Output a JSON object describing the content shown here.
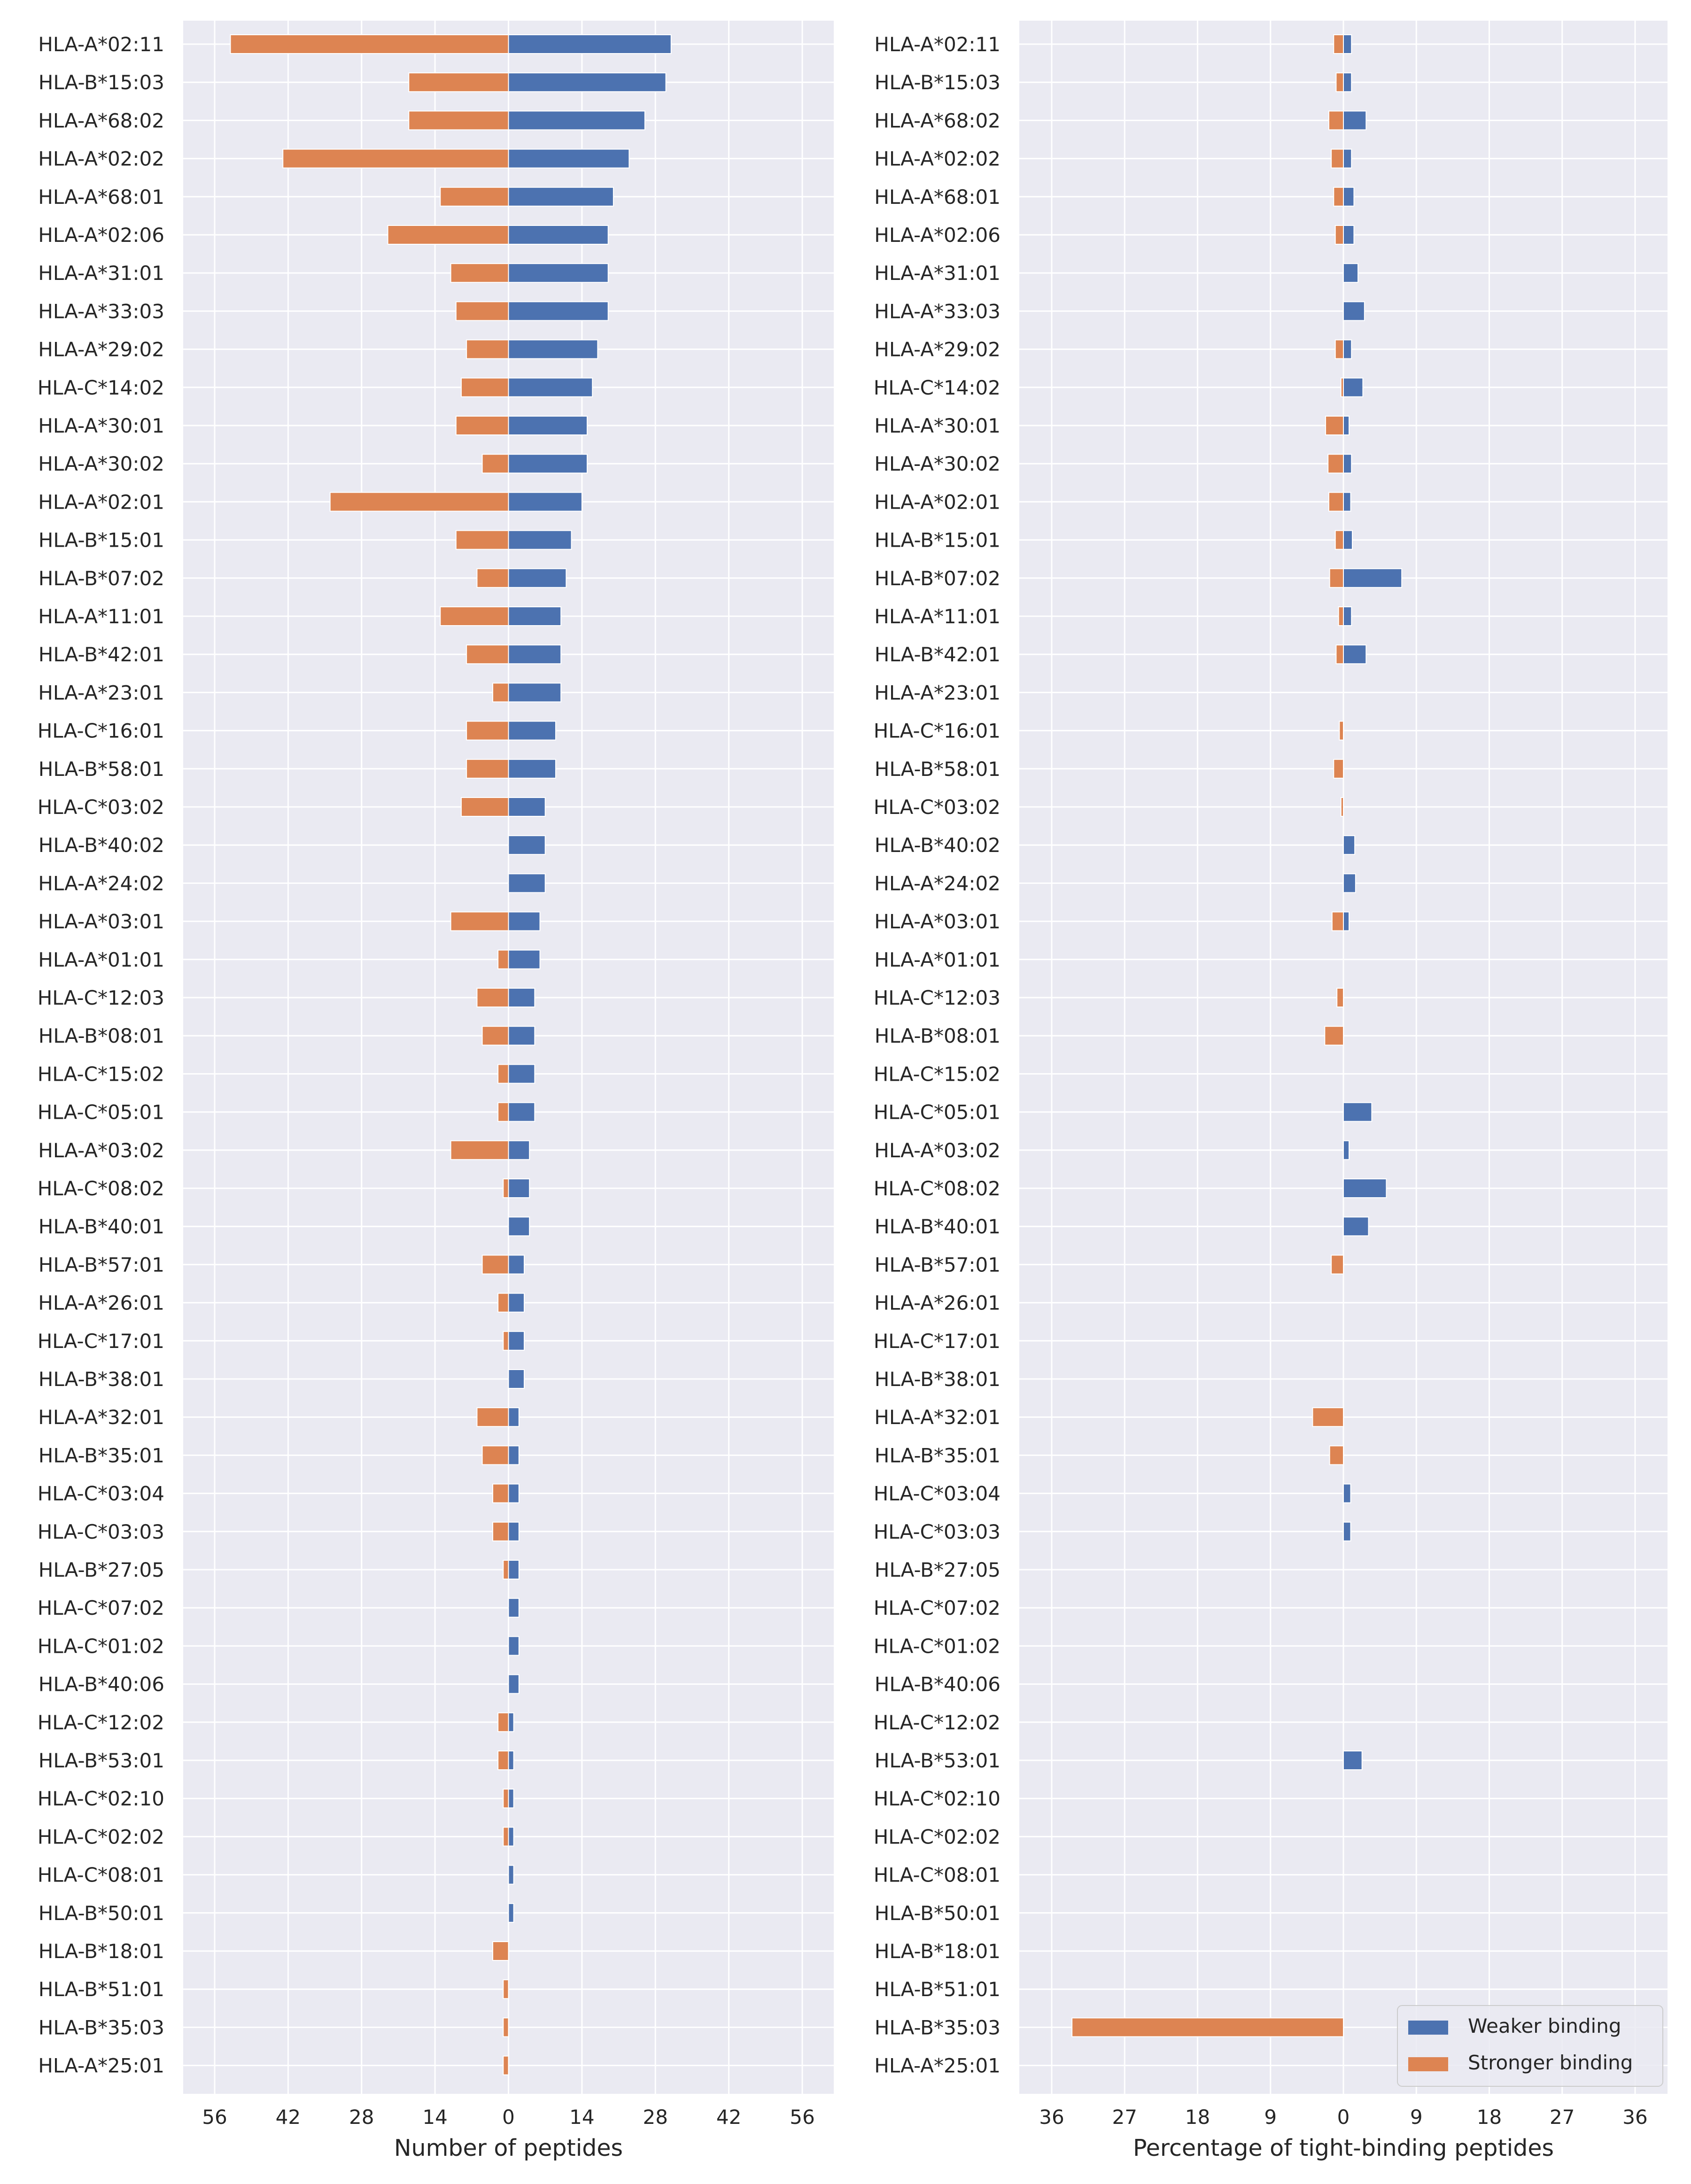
{
  "colors": {
    "weaker": "#4C72B0",
    "stronger": "#DD8452",
    "plot_bg": "#EAEAF2",
    "grid": "#FFFFFF",
    "text": "#262626"
  },
  "chart_data": [
    {
      "type": "bar",
      "orientation": "horizontal",
      "xlabel": "Number of peptides",
      "xlim": [
        -62,
        62
      ],
      "xticks": [
        -56,
        -42,
        -28,
        -14,
        0,
        14,
        28,
        42,
        56
      ],
      "xtick_labels": [
        "56",
        "42",
        "28",
        "14",
        "0",
        "14",
        "28",
        "42",
        "56"
      ],
      "grid": true,
      "categories": [
        "HLA-A*02:11",
        "HLA-B*15:03",
        "HLA-A*68:02",
        "HLA-A*02:02",
        "HLA-A*68:01",
        "HLA-A*02:06",
        "HLA-A*31:01",
        "HLA-A*33:03",
        "HLA-A*29:02",
        "HLA-C*14:02",
        "HLA-A*30:01",
        "HLA-A*30:02",
        "HLA-A*02:01",
        "HLA-B*15:01",
        "HLA-B*07:02",
        "HLA-A*11:01",
        "HLA-B*42:01",
        "HLA-A*23:01",
        "HLA-C*16:01",
        "HLA-B*58:01",
        "HLA-C*03:02",
        "HLA-B*40:02",
        "HLA-A*24:02",
        "HLA-A*03:01",
        "HLA-A*01:01",
        "HLA-C*12:03",
        "HLA-B*08:01",
        "HLA-C*15:02",
        "HLA-C*05:01",
        "HLA-A*03:02",
        "HLA-C*08:02",
        "HLA-B*40:01",
        "HLA-B*57:01",
        "HLA-A*26:01",
        "HLA-C*17:01",
        "HLA-B*38:01",
        "HLA-A*32:01",
        "HLA-B*35:01",
        "HLA-C*03:04",
        "HLA-C*03:03",
        "HLA-B*27:05",
        "HLA-C*07:02",
        "HLA-C*01:02",
        "HLA-B*40:06",
        "HLA-C*12:02",
        "HLA-B*53:01",
        "HLA-C*02:10",
        "HLA-C*02:02",
        "HLA-C*08:01",
        "HLA-B*50:01",
        "HLA-B*18:01",
        "HLA-B*51:01",
        "HLA-B*35:03",
        "HLA-A*25:01"
      ],
      "series": [
        {
          "name": "Weaker binding",
          "direction": "right",
          "values": [
            31,
            30,
            26,
            23,
            20,
            19,
            19,
            19,
            17,
            16,
            15,
            15,
            14,
            12,
            11,
            10,
            10,
            10,
            9,
            9,
            7,
            7,
            7,
            6,
            6,
            5,
            5,
            5,
            5,
            4,
            4,
            4,
            3,
            3,
            3,
            3,
            2,
            2,
            2,
            2,
            2,
            2,
            2,
            2,
            1,
            1,
            1,
            1,
            1,
            1,
            0,
            0,
            0,
            0
          ]
        },
        {
          "name": "Stronger binding",
          "direction": "left",
          "values": [
            53,
            19,
            19,
            43,
            13,
            23,
            11,
            10,
            8,
            9,
            10,
            5,
            34,
            10,
            6,
            13,
            8,
            3,
            8,
            8,
            9,
            0,
            0,
            11,
            2,
            6,
            5,
            2,
            2,
            11,
            1,
            0,
            5,
            2,
            1,
            0,
            6,
            5,
            3,
            3,
            1,
            0,
            0,
            0,
            2,
            2,
            1,
            1,
            0,
            0,
            3,
            1,
            1,
            1
          ]
        }
      ]
    },
    {
      "type": "bar",
      "orientation": "horizontal",
      "xlabel": "Percentage of tight-binding peptides",
      "xlim": [
        -40,
        40
      ],
      "xticks": [
        -36,
        -27,
        -18,
        -9,
        0,
        9,
        18,
        27,
        36
      ],
      "xtick_labels": [
        "36",
        "27",
        "18",
        "9",
        "0",
        "9",
        "18",
        "27",
        "36"
      ],
      "grid": true,
      "legend_position": "lower-right",
      "categories": [
        "HLA-A*02:11",
        "HLA-B*15:03",
        "HLA-A*68:02",
        "HLA-A*02:02",
        "HLA-A*68:01",
        "HLA-A*02:06",
        "HLA-A*31:01",
        "HLA-A*33:03",
        "HLA-A*29:02",
        "HLA-C*14:02",
        "HLA-A*30:01",
        "HLA-A*30:02",
        "HLA-A*02:01",
        "HLA-B*15:01",
        "HLA-B*07:02",
        "HLA-A*11:01",
        "HLA-B*42:01",
        "HLA-A*23:01",
        "HLA-C*16:01",
        "HLA-B*58:01",
        "HLA-C*03:02",
        "HLA-B*40:02",
        "HLA-A*24:02",
        "HLA-A*03:01",
        "HLA-A*01:01",
        "HLA-C*12:03",
        "HLA-B*08:01",
        "HLA-C*15:02",
        "HLA-C*05:01",
        "HLA-A*03:02",
        "HLA-C*08:02",
        "HLA-B*40:01",
        "HLA-B*57:01",
        "HLA-A*26:01",
        "HLA-C*17:01",
        "HLA-B*38:01",
        "HLA-A*32:01",
        "HLA-B*35:01",
        "HLA-C*03:04",
        "HLA-C*03:03",
        "HLA-B*27:05",
        "HLA-C*07:02",
        "HLA-C*01:02",
        "HLA-B*40:06",
        "HLA-C*12:02",
        "HLA-B*53:01",
        "HLA-C*02:10",
        "HLA-C*02:02",
        "HLA-C*08:01",
        "HLA-B*50:01",
        "HLA-B*18:01",
        "HLA-B*51:01",
        "HLA-B*35:03",
        "HLA-A*25:01"
      ],
      "series": [
        {
          "name": "Weaker binding",
          "direction": "right",
          "values": [
            1.0,
            1.0,
            2.8,
            1.0,
            1.3,
            1.3,
            1.8,
            2.6,
            1.0,
            2.4,
            0.7,
            1.0,
            0.9,
            1.1,
            7.2,
            1.0,
            2.8,
            0,
            0,
            0,
            0,
            1.4,
            1.5,
            0.7,
            0,
            0,
            0,
            0,
            3.5,
            0.7,
            5.3,
            3.1,
            0,
            0,
            0,
            0,
            0,
            0,
            0.9,
            0.9,
            0,
            0,
            0,
            0,
            0,
            2.3,
            0,
            0,
            0,
            0,
            0,
            0,
            0,
            0
          ]
        },
        {
          "name": "Stronger binding",
          "direction": "left",
          "values": [
            1.2,
            0.9,
            1.8,
            1.5,
            1.2,
            1.0,
            0,
            0,
            1.0,
            0.3,
            2.2,
            1.9,
            1.8,
            1.0,
            1.7,
            0.6,
            0.9,
            0,
            0.5,
            1.2,
            0.3,
            0,
            0,
            1.4,
            0,
            0.8,
            2.3,
            0,
            0,
            0,
            0,
            0,
            1.5,
            0,
            0,
            0,
            3.8,
            1.7,
            0,
            0,
            0,
            0,
            0,
            0,
            0,
            0,
            0,
            0,
            0,
            0,
            0,
            0,
            33.5,
            0
          ]
        }
      ]
    }
  ]
}
